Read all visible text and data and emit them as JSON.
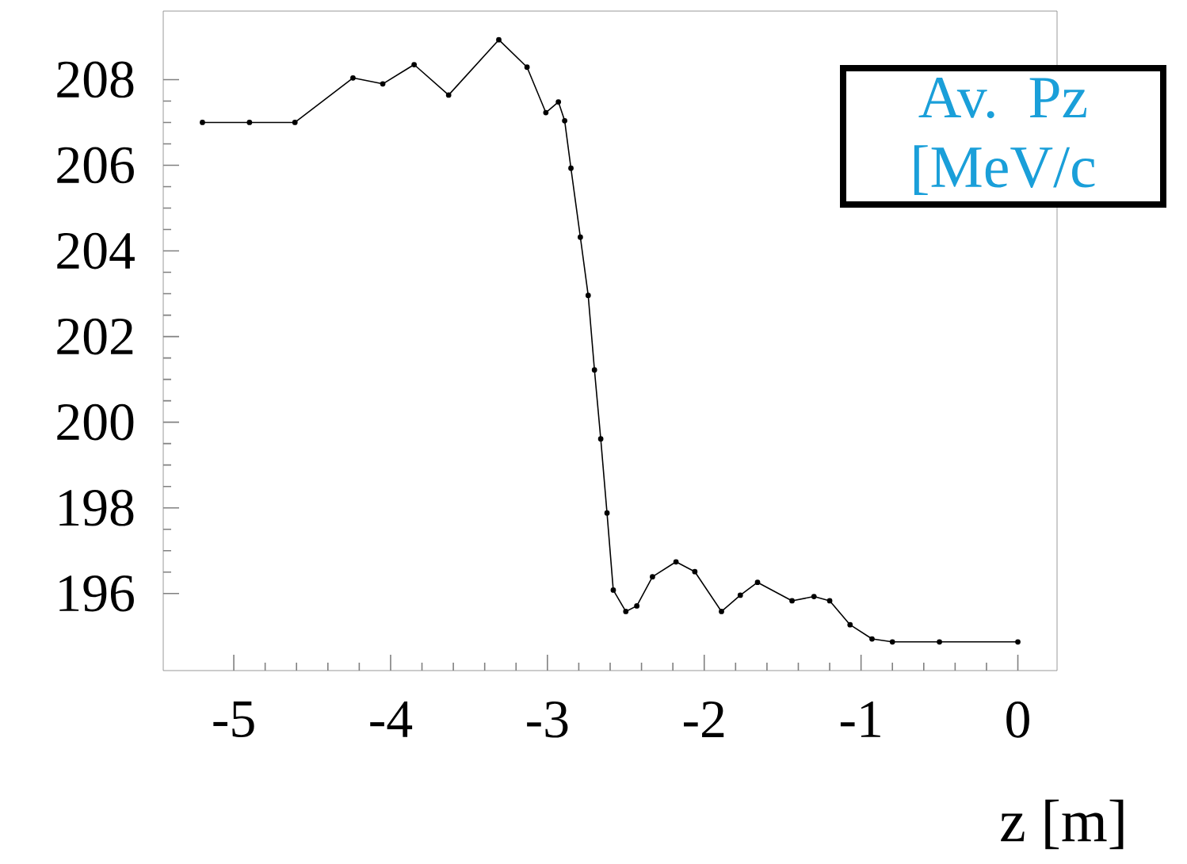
{
  "chart_data": {
    "type": "line",
    "ylabel": "Av. Pz [MeV/c",
    "xlabel": "z [m]",
    "xlim": [
      -5.45,
      0.25
    ],
    "ylim": [
      194.2,
      209.6
    ],
    "xticks": [
      -5,
      -4,
      -3,
      -2,
      -1,
      0
    ],
    "yticks": [
      196,
      198,
      200,
      202,
      204,
      206,
      208
    ],
    "marker": "circle",
    "line_style": "solid",
    "series": [
      {
        "color": "#000000",
        "x": [
          -5.2,
          -4.9,
          -4.61,
          -4.24,
          -4.05,
          -3.85,
          -3.63,
          -3.31,
          -3.13,
          -3.01,
          -2.93,
          -2.89,
          -2.85,
          -2.79,
          -2.74,
          -2.7,
          -2.66,
          -2.62,
          -2.58,
          -2.5,
          -2.43,
          -2.33,
          -2.18,
          -2.06,
          -1.89,
          -1.77,
          -1.66,
          -1.44,
          -1.3,
          -1.2,
          -1.07,
          -0.93,
          -0.8,
          -0.5,
          0.0
        ],
        "values": [
          207.0,
          207.0,
          207.0,
          208.04,
          207.9,
          208.35,
          207.64,
          208.93,
          208.29,
          207.23,
          207.48,
          207.04,
          205.93,
          204.32,
          202.96,
          201.22,
          199.61,
          197.88,
          196.08,
          195.58,
          195.71,
          196.39,
          196.74,
          196.51,
          195.58,
          195.96,
          196.26,
          195.83,
          195.93,
          195.83,
          195.27,
          194.94,
          194.87,
          194.87,
          194.87
        ]
      }
    ]
  }
}
